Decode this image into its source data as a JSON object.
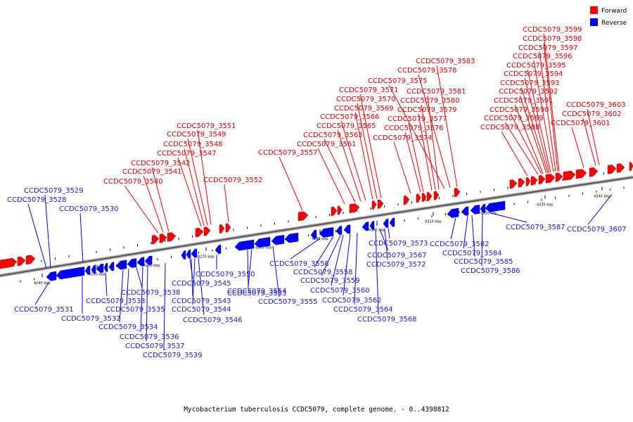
{
  "caption": "Mycobacterium tuberculosis CCDC5079, complete genome. - 0..4398812",
  "legend": {
    "forward": {
      "label": "Forward",
      "color": "#ff0000"
    },
    "reverse": {
      "label": "Reverse",
      "color": "#0000ff"
    }
  },
  "axis": {
    "tick_labels": [
      "4240 kbp",
      "4250 kbp",
      "4260 kbp",
      "4270 kbp",
      "4280 kbp",
      "4290 kbp",
      "4300 kbp",
      "4310 kbp",
      "4320 kbp",
      "4330 kbp",
      "4340 kbp"
    ]
  },
  "forward_genes": [
    "CCDC5079_3599",
    "CCDC5079_3598",
    "CCDC5079_3597",
    "CCDC5079_3596",
    "CCDC5079_3595",
    "CCDC5079_3594",
    "CCDC5079_3593",
    "CCDC5079_3592",
    "CCDC5079_3591",
    "CCDC5079_3590",
    "CCDC5079_3589",
    "CCDC5079_3588",
    "CCDC5079_3603",
    "CCDC5079_3602",
    "CCDC5079_3601",
    "CCDC5079_3583",
    "CCDC5079_3578",
    "CCDC5079_3575",
    "CCDC5079_3581",
    "CCDC5079_3571",
    "CCDC5079_3570",
    "CCDC5079_3580",
    "CCDC5079_3569",
    "CCDC5079_3579",
    "CCDC5079_3566",
    "CCDC5079_3577",
    "CCDC5079_3565",
    "CCDC5079_3576",
    "CCDC5079_3563",
    "CCDC5079_3574",
    "CCDC5079_3561",
    "CCDC5079_3557",
    "CCDC5079_3551",
    "CCDC5079_3549",
    "CCDC5079_3548",
    "CCDC5079_3547",
    "CCDC5079_3542",
    "CCDC5079_3541",
    "CCDC5079_3552",
    "CCDC5079_3540"
  ],
  "reverse_genes": [
    "CCDC5079_3529",
    "CCDC5079_3528",
    "CCDC5079_3530",
    "CCDC5079_3587",
    "CCDC5079_3607",
    "CCDC5079_3573",
    "CCDC5079_3582",
    "CCDC5079_3567",
    "CCDC5079_3584",
    "CCDC5079_3572",
    "CCDC5079_3585",
    "CCDC5079_3586",
    "CCDC5079_3550",
    "CCDC5079_3556",
    "CCDC5079_3545",
    "CCDC5079_3558",
    "CCDC5079_3538",
    "CCDC5079_3554",
    "CCDC5079_3559",
    "CCDC5079_3533",
    "CCDC5079_3543",
    "CCDC5079_3553",
    "CCDC5079_3560",
    "CCDC5079_3531",
    "CCDC5079_3535",
    "CCDC5079_3544",
    "CCDC5079_3555",
    "CCDC5079_3562",
    "CCDC5079_3532",
    "CCDC5079_3546",
    "CCDC5079_3564",
    "CCDC5079_3534",
    "CCDC5079_3568",
    "CCDC5079_3536",
    "CCDC5079_3537",
    "CCDC5079_3539"
  ]
}
